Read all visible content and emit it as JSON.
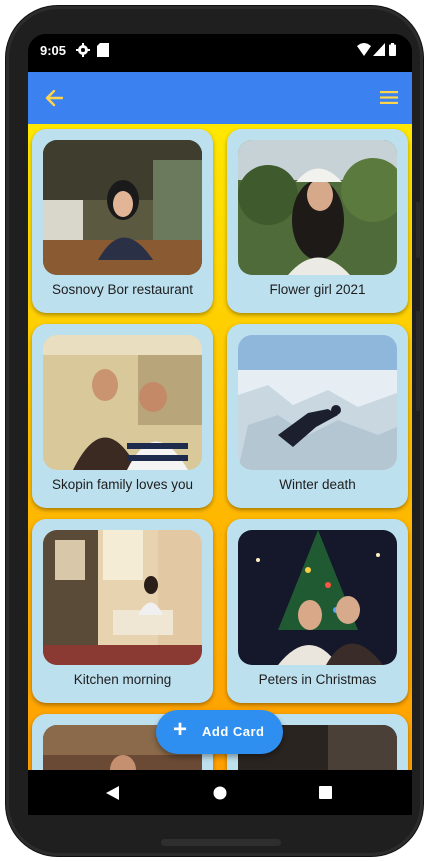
{
  "status_bar": {
    "time": "9:05"
  },
  "app_bar": {
    "back_icon": "arrow-left-icon",
    "menu_icon": "hamburger-menu-icon",
    "accent": "#ffd54a",
    "background": "#3b82f0"
  },
  "cards": [
    {
      "caption": "Sosnovy Bor restaurant"
    },
    {
      "caption": "Flower girl 2021"
    },
    {
      "caption": "Skopin family loves you"
    },
    {
      "caption": "Winter death"
    },
    {
      "caption": "Kitchen morning"
    },
    {
      "caption": "Peters in Christmas"
    }
  ],
  "fab": {
    "label": "Add Card",
    "icon": "plus-icon"
  },
  "nav_bar": {
    "back": "triangle-back-icon",
    "home": "circle-home-icon",
    "recents": "square-recents-icon"
  }
}
